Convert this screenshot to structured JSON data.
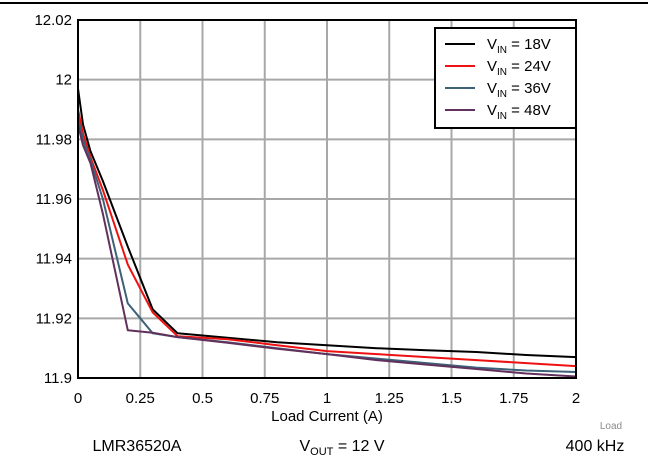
{
  "chart_data": {
    "type": "line",
    "xlabel": "Load Current (A)",
    "ylabel": "",
    "xlim": [
      0,
      2
    ],
    "ylim": [
      11.9,
      12.02
    ],
    "x_ticks": [
      "0",
      "0.25",
      "0.5",
      "0.75",
      "1",
      "1.25",
      "1.5",
      "1.75",
      "2"
    ],
    "y_ticks": [
      "11.9",
      "11.92",
      "11.94",
      "11.96",
      "11.98",
      "12",
      "12.02"
    ],
    "grid": true,
    "legend_position": "top-right",
    "series": [
      {
        "name": "V_IN = 18V",
        "name_main": "V",
        "name_sub": "IN",
        "name_rest": " = 18V",
        "color": "#000000",
        "points": [
          [
            0,
            11.997
          ],
          [
            0.02,
            11.985
          ],
          [
            0.05,
            11.976
          ],
          [
            0.1,
            11.966
          ],
          [
            0.2,
            11.944
          ],
          [
            0.3,
            11.923
          ],
          [
            0.4,
            11.915
          ],
          [
            0.6,
            11.9135
          ],
          [
            0.8,
            11.912
          ],
          [
            1.0,
            11.911
          ],
          [
            1.2,
            11.91
          ],
          [
            1.4,
            11.9093
          ],
          [
            1.6,
            11.9087
          ],
          [
            1.8,
            11.9077
          ],
          [
            2.0,
            11.907
          ]
        ]
      },
      {
        "name": "V_IN = 24V",
        "name_main": "V",
        "name_sub": "IN",
        "name_rest": " = 24V",
        "color": "#ee1111",
        "points": [
          [
            0,
            11.99
          ],
          [
            0.02,
            11.982
          ],
          [
            0.05,
            11.974
          ],
          [
            0.1,
            11.963
          ],
          [
            0.2,
            11.938
          ],
          [
            0.3,
            11.922
          ],
          [
            0.4,
            11.914
          ],
          [
            0.6,
            11.913
          ],
          [
            0.8,
            11.911
          ],
          [
            1.0,
            11.909
          ],
          [
            1.2,
            11.908
          ],
          [
            1.4,
            11.907
          ],
          [
            1.6,
            11.906
          ],
          [
            1.8,
            11.905
          ],
          [
            2.0,
            11.904
          ]
        ]
      },
      {
        "name": "V_IN = 36V",
        "name_main": "V",
        "name_sub": "IN",
        "name_rest": " = 36V",
        "color": "#3d6278",
        "points": [
          [
            0,
            11.987
          ],
          [
            0.02,
            11.98
          ],
          [
            0.05,
            11.973
          ],
          [
            0.1,
            11.96
          ],
          [
            0.2,
            11.925
          ],
          [
            0.25,
            11.92
          ],
          [
            0.3,
            11.915
          ],
          [
            0.4,
            11.9137
          ],
          [
            0.6,
            11.912
          ],
          [
            0.8,
            11.91
          ],
          [
            1.0,
            11.908
          ],
          [
            1.2,
            11.9065
          ],
          [
            1.4,
            11.905
          ],
          [
            1.6,
            11.9035
          ],
          [
            1.8,
            11.9025
          ],
          [
            2.0,
            11.902
          ]
        ]
      },
      {
        "name": "V_IN = 48V",
        "name_main": "V",
        "name_sub": "IN",
        "name_rest": " = 48V",
        "color": "#62305c",
        "points": [
          [
            0,
            11.985
          ],
          [
            0.02,
            11.978
          ],
          [
            0.05,
            11.972
          ],
          [
            0.1,
            11.955
          ],
          [
            0.2,
            11.916
          ],
          [
            0.3,
            11.9152
          ],
          [
            0.4,
            11.9137
          ],
          [
            0.6,
            11.9118
          ],
          [
            0.8,
            11.9098
          ],
          [
            1.0,
            11.908
          ],
          [
            1.2,
            11.906
          ],
          [
            1.4,
            11.9045
          ],
          [
            1.6,
            11.903
          ],
          [
            1.8,
            11.9015
          ],
          [
            2.0,
            11.9005
          ]
        ]
      }
    ]
  },
  "footer": {
    "device": "LMR36520A",
    "vout_main": "V",
    "vout_sub": "OUT",
    "vout_rest": " = 12 V",
    "frequency": "400 kHz"
  },
  "corner_note": "Load"
}
